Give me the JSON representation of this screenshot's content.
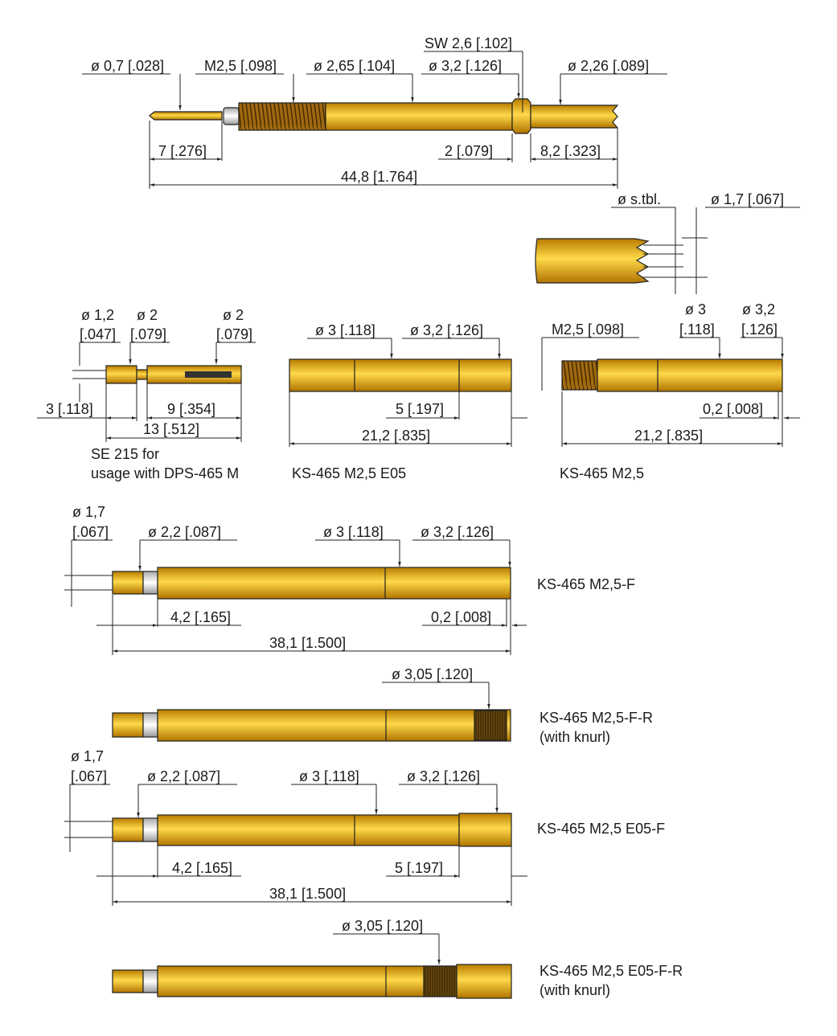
{
  "colors": {
    "gold_dark": "#b87c00",
    "gold_light": "#ffd94a",
    "gold_mid": "#e8ac00",
    "thread": "#7a5200"
  },
  "probe": {
    "tip_dia": "ø 0,7 [.028]",
    "thread": "M2,5 [.098]",
    "barrel_dia": "ø 2,65 [.104]",
    "hex": "SW 2,6 [.102]",
    "collar_dia": "ø 3,2 [.126]",
    "tail_dia": "ø 2,26 [.089]",
    "tip_len": "7 [.276]",
    "collar_len": "2 [.079]",
    "tail_len": "8,2 [.323]",
    "total_len": "44,8 [1.764]"
  },
  "crown_detail": {
    "dia_tbl": "ø s.tbl.",
    "dia": "ø 1,7 [.067]"
  },
  "se215": {
    "d1": "ø 1,2",
    "d1_in": "[.047]",
    "d2": "ø 2",
    "d2_in": "[.079]",
    "d3": "ø 2",
    "d3_in": "[.079]",
    "l1": "3 [.118]",
    "l2": "9 [.354]",
    "l3": "13 [.512]",
    "caption1": "SE 215 for",
    "caption2": "usage with DPS-465 M"
  },
  "ks_e05": {
    "d1": "ø 3 [.118]",
    "d2": "ø 3,2 [.126]",
    "l1": "5 [.197]",
    "l2": "21,2 [.835]",
    "caption": "KS-465 M2,5 E05"
  },
  "ks_m25": {
    "thread": "M2,5 [.098]",
    "d1": "ø 3",
    "d1_in": "[.118]",
    "d2": "ø 3,2",
    "d2_in": "[.126]",
    "l1": "0,2 [.008]",
    "l2": "21,2 [.835]",
    "caption": "KS-465 M2,5"
  },
  "ks_f": {
    "d0": "ø 1,7",
    "d0_in": "[.067]",
    "d1": "ø 2,2 [.087]",
    "d2": "ø 3 [.118]",
    "d3": "ø 3,2 [.126]",
    "l1": "4,2 [.165]",
    "l2": "0,2 [.008]",
    "l3": "38,1 [1.500]",
    "caption": "KS-465 M2,5-F"
  },
  "ks_fr": {
    "d1": "ø 3,05 [.120]",
    "caption1": "KS-465 M2,5-F-R",
    "caption2": "(with knurl)"
  },
  "ks_e05f": {
    "d0": "ø 1,7",
    "d0_in": "[.067]",
    "d1": "ø 2,2 [.087]",
    "d2": "ø 3 [.118]",
    "d3": "ø 3,2 [.126]",
    "l1": "4,2 [.165]",
    "l2": "5 [.197]",
    "l3": "38,1 [1.500]",
    "caption": "KS-465 M2,5 E05-F"
  },
  "ks_e05fr": {
    "d1": "ø 3,05 [.120]",
    "caption1": "KS-465 M2,5 E05-F-R",
    "caption2": "(with knurl)"
  }
}
